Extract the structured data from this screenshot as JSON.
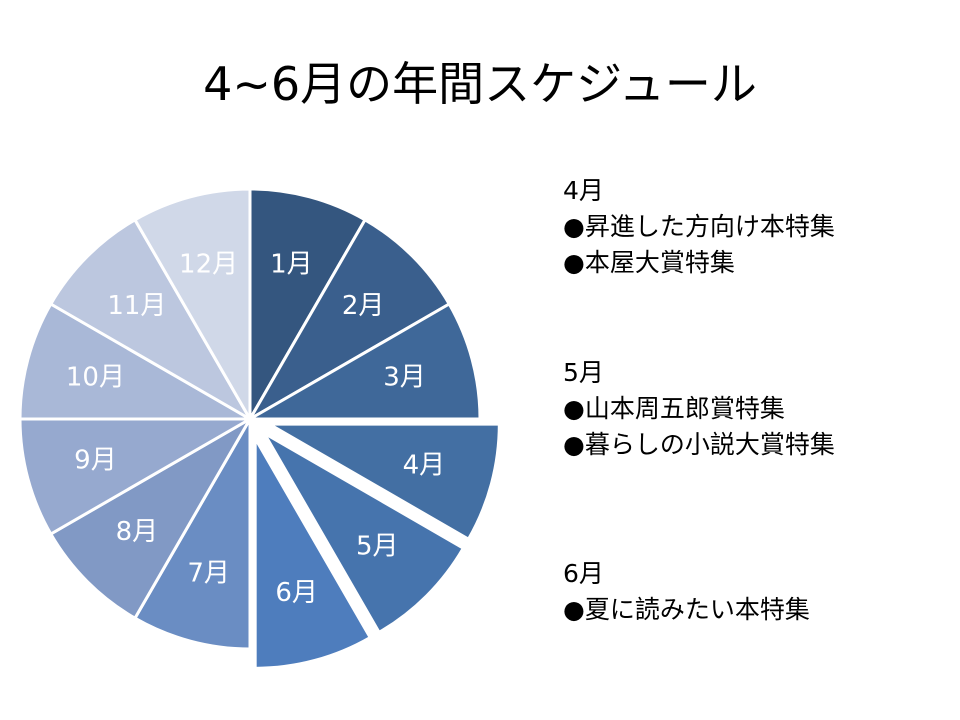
{
  "title": "4~6月の年間スケジュール",
  "chart_data": {
    "type": "pie",
    "title": "4~6月の年間スケジュール",
    "categories": [
      "1月",
      "2月",
      "3月",
      "4月",
      "5月",
      "6月",
      "7月",
      "8月",
      "9月",
      "10月",
      "11月",
      "12月"
    ],
    "values": [
      1,
      1,
      1,
      1,
      1,
      1,
      1,
      1,
      1,
      1,
      1,
      1
    ],
    "exploded": [
      "4月",
      "5月",
      "6月"
    ],
    "colors": [
      "#34567f",
      "#3a5f8d",
      "#3f6899",
      "#436fa3",
      "#4674ad",
      "#4e7dbd",
      "#6a8dc3",
      "#8199c5",
      "#96a9cf",
      "#a9b8d7",
      "#bcc7df",
      "#d0d8e8"
    ],
    "start": "12 o'clock",
    "direction": "clockwise"
  },
  "notes": [
    {
      "heading": "4月",
      "items": [
        "●昇進した方向け本特集",
        "●本屋大賞特集"
      ]
    },
    {
      "heading": "5月",
      "items": [
        "●山本周五郎賞特集",
        "●暮らしの小説大賞特集"
      ]
    },
    {
      "heading": "6月",
      "items": [
        "●夏に読みたい本特集"
      ]
    }
  ]
}
